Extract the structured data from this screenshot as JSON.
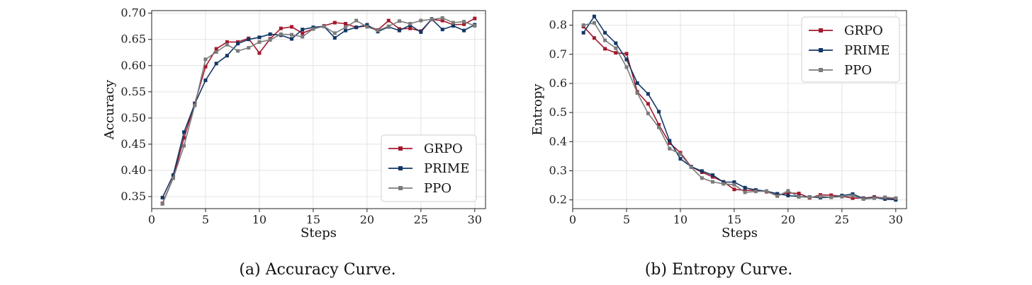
{
  "colors": {
    "GRPO": "#a3192f",
    "PRIME": "#123764",
    "PPO": "#7b7b7b"
  },
  "captions": [
    "(a) Accuracy Curve.",
    "(b) Entropy Curve."
  ],
  "chart_data": [
    {
      "type": "line",
      "xlabel": "Steps",
      "ylabel": "Accuracy",
      "xlim": [
        0,
        31
      ],
      "ylim": [
        0.327,
        0.705
      ],
      "xticks": [
        0,
        5,
        10,
        15,
        20,
        25,
        30
      ],
      "yticks": [
        0.35,
        0.4,
        0.45,
        0.5,
        0.55,
        0.6,
        0.65,
        0.7
      ],
      "ytick_labels": [
        "0.35",
        "0.40",
        "0.45",
        "0.50",
        "0.55",
        "0.60",
        "0.65",
        "0.70"
      ],
      "grid": true,
      "legend": "lower-right",
      "x": [
        1,
        2,
        3,
        4,
        5,
        6,
        7,
        8,
        9,
        10,
        11,
        12,
        13,
        14,
        15,
        16,
        17,
        18,
        19,
        20,
        21,
        22,
        23,
        24,
        25,
        26,
        27,
        28,
        29,
        30
      ],
      "series": [
        {
          "name": "GRPO",
          "values": [
            0.337,
            0.386,
            0.462,
            0.528,
            0.598,
            0.632,
            0.645,
            0.645,
            0.652,
            0.624,
            0.651,
            0.671,
            0.674,
            0.662,
            0.67,
            0.676,
            0.682,
            0.68,
            0.673,
            0.676,
            0.668,
            0.686,
            0.67,
            0.671,
            0.666,
            0.688,
            0.686,
            0.678,
            0.679,
            0.69
          ]
        },
        {
          "name": "PRIME",
          "values": [
            0.348,
            0.391,
            0.473,
            0.527,
            0.572,
            0.604,
            0.619,
            0.642,
            0.65,
            0.654,
            0.66,
            0.658,
            0.651,
            0.669,
            0.673,
            0.675,
            0.653,
            0.667,
            0.673,
            0.678,
            0.665,
            0.674,
            0.667,
            0.677,
            0.664,
            0.689,
            0.669,
            0.676,
            0.667,
            0.678
          ]
        },
        {
          "name": "PPO",
          "values": [
            0.336,
            0.385,
            0.447,
            0.524,
            0.612,
            0.626,
            0.64,
            0.628,
            0.634,
            0.645,
            0.649,
            0.66,
            0.659,
            0.655,
            0.67,
            0.675,
            0.662,
            0.673,
            0.686,
            0.674,
            0.667,
            0.675,
            0.685,
            0.68,
            0.686,
            0.688,
            0.691,
            0.682,
            0.684,
            0.676
          ]
        }
      ]
    },
    {
      "type": "line",
      "xlabel": "Steps",
      "ylabel": "Entropy",
      "xlim": [
        0,
        31
      ],
      "ylim": [
        0.17,
        0.85
      ],
      "xticks": [
        0,
        5,
        10,
        15,
        20,
        25,
        30
      ],
      "yticks": [
        0.2,
        0.3,
        0.4,
        0.5,
        0.6,
        0.7,
        0.8
      ],
      "ytick_labels": [
        "0.2",
        "0.3",
        "0.4",
        "0.5",
        "0.6",
        "0.7",
        "0.8"
      ],
      "grid": true,
      "legend": "top-right",
      "x": [
        1,
        2,
        3,
        4,
        5,
        6,
        7,
        8,
        9,
        10,
        11,
        12,
        13,
        14,
        15,
        16,
        17,
        18,
        19,
        20,
        21,
        22,
        23,
        24,
        25,
        26,
        27,
        28,
        29,
        30
      ],
      "series": [
        {
          "name": "GRPO",
          "values": [
            0.795,
            0.756,
            0.719,
            0.705,
            0.702,
            0.571,
            0.53,
            0.458,
            0.395,
            0.362,
            0.314,
            0.295,
            0.279,
            0.262,
            0.236,
            0.233,
            0.233,
            0.228,
            0.216,
            0.224,
            0.222,
            0.207,
            0.217,
            0.216,
            0.212,
            0.206,
            0.206,
            0.21,
            0.207,
            0.204
          ]
        },
        {
          "name": "PRIME",
          "values": [
            0.774,
            0.83,
            0.774,
            0.738,
            0.682,
            0.601,
            0.564,
            0.503,
            0.403,
            0.341,
            0.314,
            0.299,
            0.285,
            0.261,
            0.261,
            0.242,
            0.234,
            0.23,
            0.221,
            0.215,
            0.211,
            0.21,
            0.208,
            0.209,
            0.215,
            0.22,
            0.205,
            0.208,
            0.203,
            0.2
          ]
        },
        {
          "name": "PPO",
          "values": [
            0.8,
            0.808,
            0.748,
            0.721,
            0.656,
            0.567,
            0.497,
            0.449,
            0.376,
            0.357,
            0.312,
            0.275,
            0.262,
            0.255,
            0.252,
            0.226,
            0.229,
            0.23,
            0.213,
            0.231,
            0.21,
            0.209,
            0.212,
            0.209,
            0.211,
            0.214,
            0.203,
            0.206,
            0.209,
            0.206
          ]
        }
      ]
    }
  ]
}
